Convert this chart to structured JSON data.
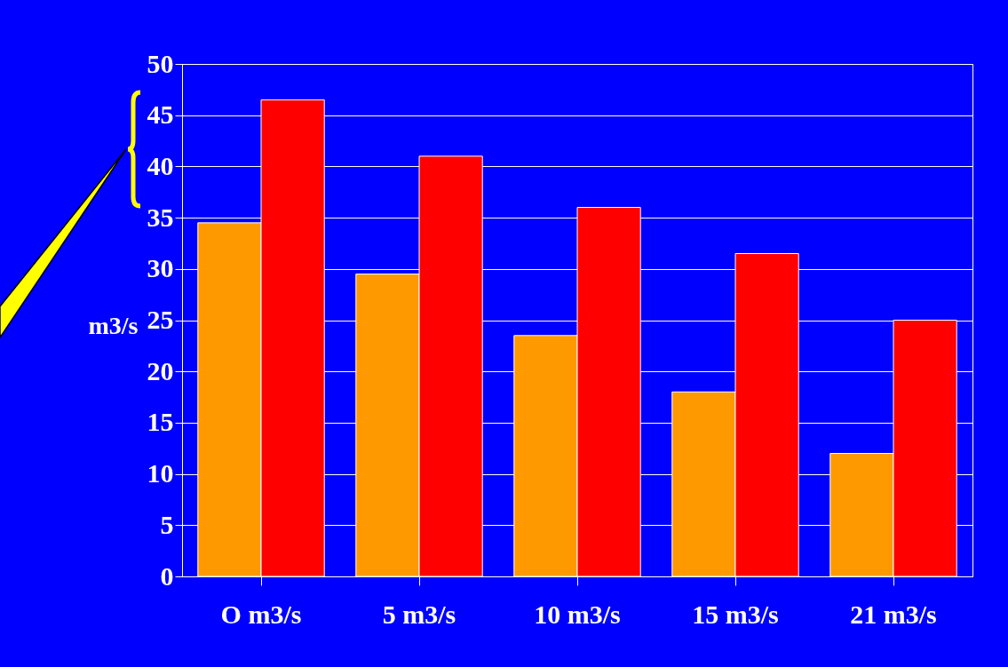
{
  "chart_data": {
    "type": "bar",
    "ylabel": "m3/s",
    "categories": [
      "O m3/s",
      "5 m3/s",
      "10 m3/s",
      "15 m3/s",
      "21 m3/s"
    ],
    "series": [
      {
        "color": "#ff9900",
        "values": [
          34.5,
          29.5,
          23.5,
          18,
          12
        ]
      },
      {
        "color": "#ff0000",
        "values": [
          46.5,
          41,
          36,
          31.5,
          25
        ]
      }
    ],
    "ylim": [
      0,
      50
    ],
    "yticks": [
      0,
      5,
      10,
      15,
      20,
      25,
      30,
      35,
      40,
      45,
      50
    ],
    "grid": "y",
    "legend": false
  }
}
